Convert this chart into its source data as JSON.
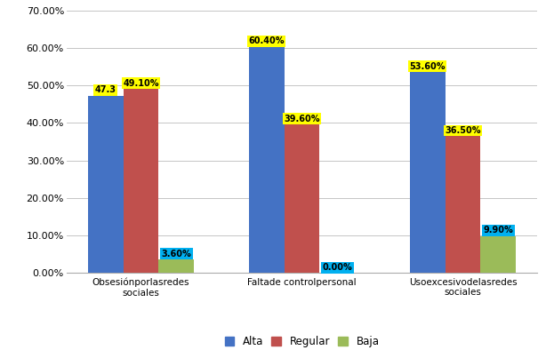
{
  "categories": [
    "Obsesiónporlasredes\nsociales",
    "Faltade controlpersonal",
    "Usoexcesivodelasredes\nsociales"
  ],
  "series": {
    "Alta": [
      47.3,
      60.4,
      53.6
    ],
    "Regular": [
      49.1,
      39.6,
      36.5
    ],
    "Baja": [
      3.6,
      0.0,
      9.9
    ]
  },
  "colors": {
    "Alta": "#4472C4",
    "Regular": "#C0504D",
    "Baja": "#9BBB59"
  },
  "label_bg_colors": {
    "Alta": "#FFFF00",
    "Regular": "#FFFF00",
    "Baja": "#00B0F0"
  },
  "labels": {
    "Alta": [
      "47.3",
      "60.40%",
      "53.60%"
    ],
    "Regular": [
      "49.10%",
      "39.60%",
      "36.50%"
    ],
    "Baja": [
      "3.60%",
      "0.00%",
      "9.90%"
    ]
  },
  "ylim": [
    0,
    70
  ],
  "yticks": [
    0,
    10,
    20,
    30,
    40,
    50,
    60,
    70
  ],
  "ytick_labels": [
    "0.00%",
    "10.00%",
    "20.00%",
    "30.00%",
    "40.00%",
    "50.00%",
    "60.00%",
    "70.00%"
  ],
  "bar_width": 0.22,
  "legend_labels": [
    "Alta",
    "Regular",
    "Baja"
  ],
  "figure_bg": "#FFFFFF",
  "grid_color": "#BBBBBB",
  "border_color": "#AAAAAA"
}
